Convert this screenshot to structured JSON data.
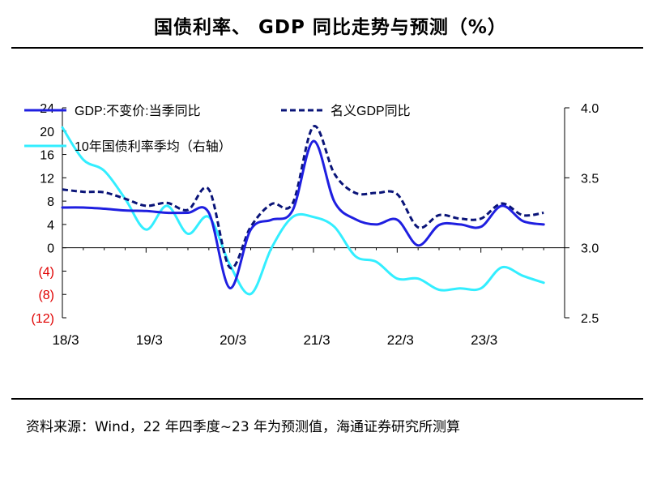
{
  "title": "国债利率、 GDP 同比走势与预测（%）",
  "source_note": "资料来源：Wind，22 年四季度~23 年为预测值，海通证券研究所测算",
  "chart_data": {
    "type": "line",
    "x_labels": [
      "18/3",
      "19/3",
      "20/3",
      "21/3",
      "22/3",
      "23/3"
    ],
    "left_axis": {
      "range": [
        -12,
        24
      ],
      "ticks": [
        24,
        20,
        16,
        12,
        8,
        4,
        0,
        -4,
        -8,
        -12
      ],
      "tick_labels": [
        "24",
        "20",
        "16",
        "12",
        "8",
        "4",
        "0",
        "(4)",
        "(8)",
        "(12)"
      ],
      "negative_color": "#e00000"
    },
    "right_axis": {
      "range": [
        2.5,
        4.0
      ],
      "ticks": [
        4.0,
        3.5,
        3.0,
        2.5
      ],
      "tick_labels": [
        "4.0",
        "3.5",
        "3.0",
        "2.5"
      ]
    },
    "series": [
      {
        "name": "GDP:不变价:当季同比",
        "axis": "left",
        "color": "#1f1fe0",
        "style": "solid",
        "x": [
          2018.0,
          2018.25,
          2018.5,
          2018.75,
          2019.0,
          2019.25,
          2019.5,
          2019.75,
          2020.0,
          2020.25,
          2020.5,
          2020.75,
          2021.0,
          2021.25,
          2021.5,
          2021.75,
          2022.0,
          2022.25,
          2022.5,
          2022.75,
          2023.0,
          2023.25,
          2023.5,
          2023.75
        ],
        "values": [
          6.9,
          6.9,
          6.7,
          6.4,
          6.3,
          6.0,
          6.0,
          6.0,
          -6.9,
          3.1,
          4.8,
          6.4,
          18.3,
          7.9,
          4.9,
          4.0,
          4.8,
          0.4,
          3.9,
          4.0,
          3.6,
          7.2,
          4.6,
          4.0
        ]
      },
      {
        "name": "名义GDP同比",
        "axis": "left",
        "color": "#0a1478",
        "style": "dashed",
        "x": [
          2018.0,
          2018.25,
          2018.5,
          2018.75,
          2019.0,
          2019.25,
          2019.5,
          2019.75,
          2020.0,
          2020.25,
          2020.5,
          2020.75,
          2021.0,
          2021.25,
          2021.5,
          2021.75,
          2022.0,
          2022.25,
          2022.5,
          2022.75,
          2023.0,
          2023.25,
          2023.5,
          2023.75
        ],
        "values": [
          10.0,
          9.6,
          9.5,
          8.4,
          7.2,
          7.7,
          6.5,
          10.0,
          -3.4,
          3.6,
          7.5,
          7.6,
          20.8,
          12.7,
          9.4,
          9.4,
          9.2,
          3.5,
          5.6,
          5.0,
          5.0,
          7.6,
          5.6,
          6.0
        ]
      },
      {
        "name": "10年国债利率季均（右轴）",
        "axis": "right",
        "color": "#33eeff",
        "style": "solid",
        "x": [
          2018.0,
          2018.25,
          2018.5,
          2018.75,
          2019.0,
          2019.25,
          2019.5,
          2019.75,
          2020.0,
          2020.25,
          2020.5,
          2020.75,
          2021.0,
          2021.25,
          2021.5,
          2021.75,
          2022.0,
          2022.25,
          2022.5,
          2022.75,
          2023.0,
          2023.25,
          2023.5,
          2023.75
        ],
        "values": [
          3.86,
          3.63,
          3.55,
          3.35,
          3.13,
          3.3,
          3.1,
          3.22,
          2.88,
          2.67,
          3.0,
          3.22,
          3.22,
          3.15,
          2.94,
          2.9,
          2.78,
          2.78,
          2.7,
          2.71,
          2.71,
          2.86,
          2.8,
          2.75
        ]
      }
    ],
    "legend": [
      {
        "label": "GDP:不变价:当季同比",
        "series": 0
      },
      {
        "label": "名义GDP同比",
        "series": 1
      },
      {
        "label": "10年国债利率季均（右轴）",
        "series": 2
      }
    ]
  }
}
